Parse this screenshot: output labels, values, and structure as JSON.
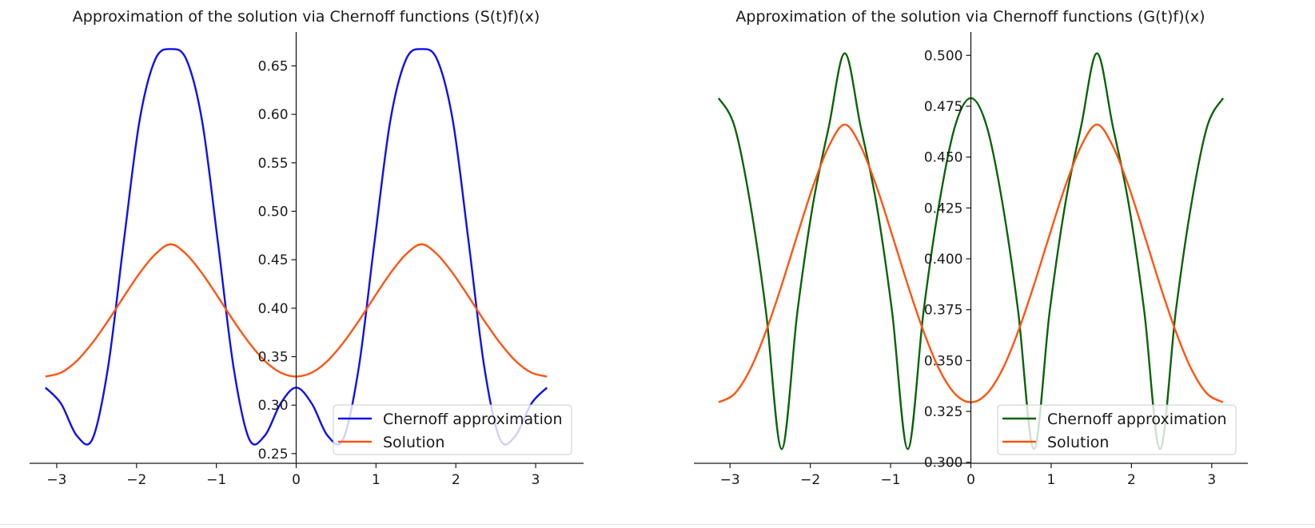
{
  "chart_data": [
    {
      "type": "line",
      "title": "Approximation of the solution via Chernoff functions (S(t)f)(x)",
      "xlim": [
        -3.34,
        3.6
      ],
      "ylim": [
        0.24,
        0.685
      ],
      "xticks": [
        -3,
        -2,
        -1,
        0,
        1,
        2,
        3
      ],
      "xtick_labels": [
        "−3",
        "−2",
        "−1",
        "0",
        "1",
        "2",
        "3"
      ],
      "yticks": [
        0.25,
        0.3,
        0.35,
        0.4,
        0.45,
        0.5,
        0.55,
        0.6,
        0.65
      ],
      "ytick_labels": [
        "0.25",
        "0.30",
        "0.35",
        "0.40",
        "0.45",
        "0.50",
        "0.55",
        "0.60",
        "0.65"
      ],
      "spines": "centered at origin",
      "grid": false,
      "legend_position": "lower-right",
      "series": [
        {
          "name": "Chernoff approximation",
          "color": "#1010ee",
          "x": [
            -3.1416,
            -2.9452,
            -2.7489,
            -2.5525,
            -2.3562,
            -2.1598,
            -1.9635,
            -1.7671,
            -1.5708,
            -1.3744,
            -1.1781,
            -0.9817,
            -0.7854,
            -0.589,
            -0.3927,
            -0.1963,
            0,
            0.1963,
            0.3927,
            0.589,
            0.7854,
            0.9817,
            1.1781,
            1.3744,
            1.5708,
            1.7671,
            1.9635,
            2.1598,
            2.3562,
            2.5525,
            2.7489,
            2.9452,
            3.1416
          ],
          "y": [
            0.3181,
            0.3015,
            0.2686,
            0.265,
            0.3395,
            0.4687,
            0.5929,
            0.6564,
            0.6673,
            0.6564,
            0.5929,
            0.4687,
            0.3395,
            0.265,
            0.2686,
            0.3015,
            0.3181,
            0.3015,
            0.2686,
            0.265,
            0.3395,
            0.4687,
            0.5929,
            0.6564,
            0.6673,
            0.6564,
            0.5929,
            0.4687,
            0.3395,
            0.265,
            0.2686,
            0.3015,
            0.3181
          ]
        },
        {
          "name": "Solution",
          "color": "#ff5512",
          "x": [
            -3.1416,
            -2.9452,
            -2.7489,
            -2.5525,
            -2.3562,
            -2.1598,
            -1.9635,
            -1.7671,
            -1.5708,
            -1.3744,
            -1.1781,
            -0.9817,
            -0.7854,
            -0.589,
            -0.3927,
            -0.1963,
            0,
            0.1963,
            0.3927,
            0.589,
            0.7854,
            0.9817,
            1.1781,
            1.3744,
            1.5708,
            1.7671,
            1.9635,
            2.1598,
            2.3562,
            2.5525,
            2.7489,
            2.9452,
            3.1416
          ],
          "y": [
            0.3295,
            0.3336,
            0.3456,
            0.3643,
            0.3871,
            0.4119,
            0.4359,
            0.4555,
            0.466,
            0.4555,
            0.4359,
            0.4119,
            0.3871,
            0.3643,
            0.3456,
            0.3336,
            0.3295,
            0.3336,
            0.3456,
            0.3643,
            0.3871,
            0.4119,
            0.4359,
            0.4555,
            0.466,
            0.4555,
            0.4359,
            0.4119,
            0.3871,
            0.3643,
            0.3456,
            0.3336,
            0.3295
          ]
        }
      ]
    },
    {
      "type": "line",
      "title": "Approximation of the solution via Chernoff functions (G(t)f)(x)",
      "xlim": [
        -3.45,
        3.45
      ],
      "ylim": [
        0.2995,
        0.5115
      ],
      "xticks": [
        -3,
        -2,
        -1,
        0,
        1,
        2,
        3
      ],
      "xtick_labels": [
        "−3",
        "−2",
        "−1",
        "0",
        "1",
        "2",
        "3"
      ],
      "yticks": [
        0.3,
        0.325,
        0.35,
        0.375,
        0.4,
        0.425,
        0.45,
        0.475,
        0.5
      ],
      "ytick_labels": [
        "0.300",
        "0.325",
        "0.350",
        "0.375",
        "0.400",
        "0.425",
        "0.450",
        "0.475",
        "0.500"
      ],
      "spines": "centered at origin",
      "grid": false,
      "legend_position": "lower-right",
      "series": [
        {
          "name": "Chernoff approximation",
          "color": "#0a640a",
          "x": [
            -3.1416,
            -2.9452,
            -2.7489,
            -2.5525,
            -2.3562,
            -2.1598,
            -1.9635,
            -1.7671,
            -1.5708,
            -1.3744,
            -1.1781,
            -0.9817,
            -0.7854,
            -0.589,
            -0.3927,
            -0.1963,
            0,
            0.1963,
            0.3927,
            0.589,
            0.7854,
            0.9817,
            1.1781,
            1.3744,
            1.5708,
            1.7671,
            1.9635,
            2.1598,
            2.3562,
            2.5525,
            2.7489,
            2.9452,
            3.1416
          ],
          "y": [
            0.479,
            0.4653,
            0.4275,
            0.3742,
            0.3065,
            0.3742,
            0.4275,
            0.4653,
            0.501,
            0.4653,
            0.4275,
            0.3742,
            0.3065,
            0.3742,
            0.4275,
            0.4653,
            0.479,
            0.4653,
            0.4275,
            0.3742,
            0.3065,
            0.3742,
            0.4275,
            0.4653,
            0.501,
            0.4653,
            0.4275,
            0.3742,
            0.3065,
            0.3742,
            0.4275,
            0.4653,
            0.479
          ]
        },
        {
          "name": "Solution",
          "color": "#ff5512",
          "x": [
            -3.1416,
            -2.9452,
            -2.7489,
            -2.5525,
            -2.3562,
            -2.1598,
            -1.9635,
            -1.7671,
            -1.5708,
            -1.3744,
            -1.1781,
            -0.9817,
            -0.7854,
            -0.589,
            -0.3927,
            -0.1963,
            0,
            0.1963,
            0.3927,
            0.589,
            0.7854,
            0.9817,
            1.1781,
            1.3744,
            1.5708,
            1.7671,
            1.9635,
            2.1598,
            2.3562,
            2.5525,
            2.7489,
            2.9452,
            3.1416
          ],
          "y": [
            0.3295,
            0.3336,
            0.3456,
            0.3643,
            0.3871,
            0.4119,
            0.4359,
            0.4555,
            0.466,
            0.4555,
            0.4359,
            0.4119,
            0.3871,
            0.3643,
            0.3456,
            0.3336,
            0.3295,
            0.3336,
            0.3456,
            0.3643,
            0.3871,
            0.4119,
            0.4359,
            0.4555,
            0.466,
            0.4555,
            0.4359,
            0.4119,
            0.3871,
            0.3643,
            0.3456,
            0.3336,
            0.3295
          ]
        }
      ]
    }
  ]
}
